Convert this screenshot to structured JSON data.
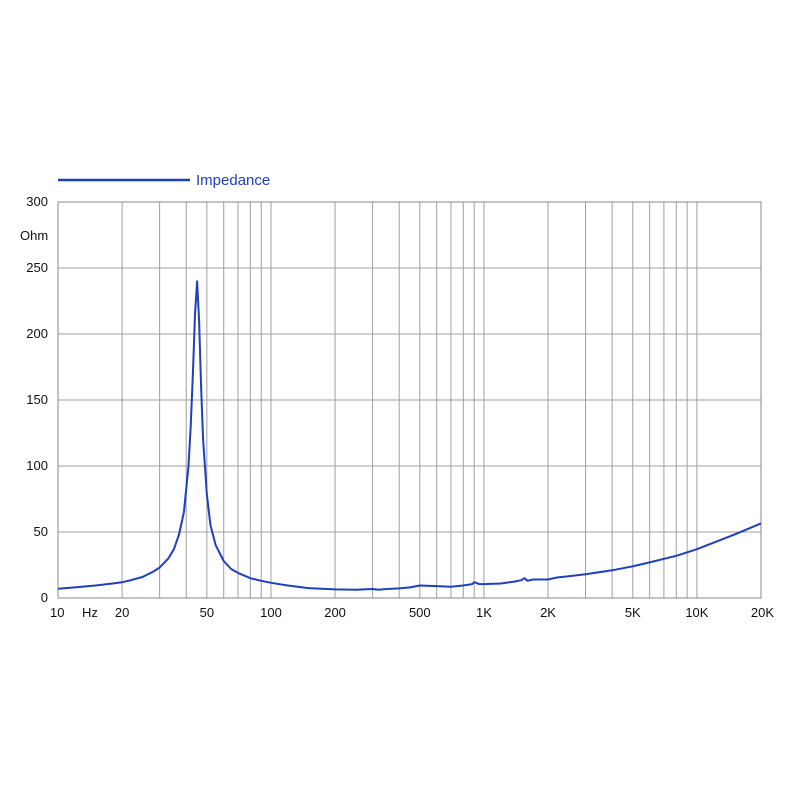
{
  "chart_data": {
    "type": "line",
    "x_scale": "log",
    "xlim": [
      10,
      20000
    ],
    "ylim": [
      0,
      300
    ],
    "grid": true,
    "legend_position": "top-left",
    "y_unit": "Ohm",
    "x_unit": "Hz",
    "x_ticks": [
      {
        "value": 10,
        "label": "10"
      },
      {
        "value": 20,
        "label": "20"
      },
      {
        "value": 50,
        "label": "50"
      },
      {
        "value": 100,
        "label": "100"
      },
      {
        "value": 200,
        "label": "200"
      },
      {
        "value": 500,
        "label": "500"
      },
      {
        "value": 1000,
        "label": "1K"
      },
      {
        "value": 2000,
        "label": "2K"
      },
      {
        "value": 5000,
        "label": "5K"
      },
      {
        "value": 10000,
        "label": "10K"
      },
      {
        "value": 20000,
        "label": "20K"
      }
    ],
    "y_ticks": [
      {
        "value": 0,
        "label": "0"
      },
      {
        "value": 50,
        "label": "50"
      },
      {
        "value": 100,
        "label": "100"
      },
      {
        "value": 150,
        "label": "150"
      },
      {
        "value": 200,
        "label": "200"
      },
      {
        "value": 250,
        "label": "250"
      },
      {
        "value": 300,
        "label": "300"
      }
    ],
    "series": [
      {
        "name": "Impedance",
        "color": "#1f3fbf",
        "points": [
          [
            10,
            7
          ],
          [
            12,
            8
          ],
          [
            15,
            9.5
          ],
          [
            18,
            11
          ],
          [
            20,
            12
          ],
          [
            22,
            13.5
          ],
          [
            25,
            16
          ],
          [
            28,
            20
          ],
          [
            30,
            23
          ],
          [
            33,
            30
          ],
          [
            35,
            37
          ],
          [
            37,
            48
          ],
          [
            39,
            65
          ],
          [
            41,
            100
          ],
          [
            42,
            130
          ],
          [
            43,
            170
          ],
          [
            44,
            215
          ],
          [
            45,
            240
          ],
          [
            46,
            210
          ],
          [
            47,
            160
          ],
          [
            48,
            120
          ],
          [
            50,
            78
          ],
          [
            52,
            55
          ],
          [
            55,
            40
          ],
          [
            60,
            28
          ],
          [
            65,
            22
          ],
          [
            70,
            19
          ],
          [
            80,
            15
          ],
          [
            90,
            13
          ],
          [
            100,
            11.5
          ],
          [
            120,
            9.5
          ],
          [
            150,
            7.5
          ],
          [
            200,
            6.5
          ],
          [
            250,
            6.3
          ],
          [
            300,
            6.8
          ],
          [
            320,
            6.3
          ],
          [
            350,
            6.8
          ],
          [
            400,
            7.3
          ],
          [
            450,
            8
          ],
          [
            500,
            9.5
          ],
          [
            600,
            9
          ],
          [
            700,
            8.5
          ],
          [
            800,
            9.5
          ],
          [
            880,
            10.5
          ],
          [
            900,
            12
          ],
          [
            950,
            10.5
          ],
          [
            1000,
            10.5
          ],
          [
            1200,
            11
          ],
          [
            1400,
            12.5
          ],
          [
            1500,
            13.5
          ],
          [
            1550,
            15
          ],
          [
            1600,
            13
          ],
          [
            1700,
            14
          ],
          [
            2000,
            14
          ],
          [
            2200,
            15.5
          ],
          [
            2500,
            16.5
          ],
          [
            3000,
            18
          ],
          [
            4000,
            21
          ],
          [
            5000,
            24
          ],
          [
            6000,
            27
          ],
          [
            8000,
            32
          ],
          [
            10000,
            37
          ],
          [
            12000,
            42
          ],
          [
            15000,
            48
          ],
          [
            20000,
            56.5
          ]
        ]
      }
    ]
  }
}
